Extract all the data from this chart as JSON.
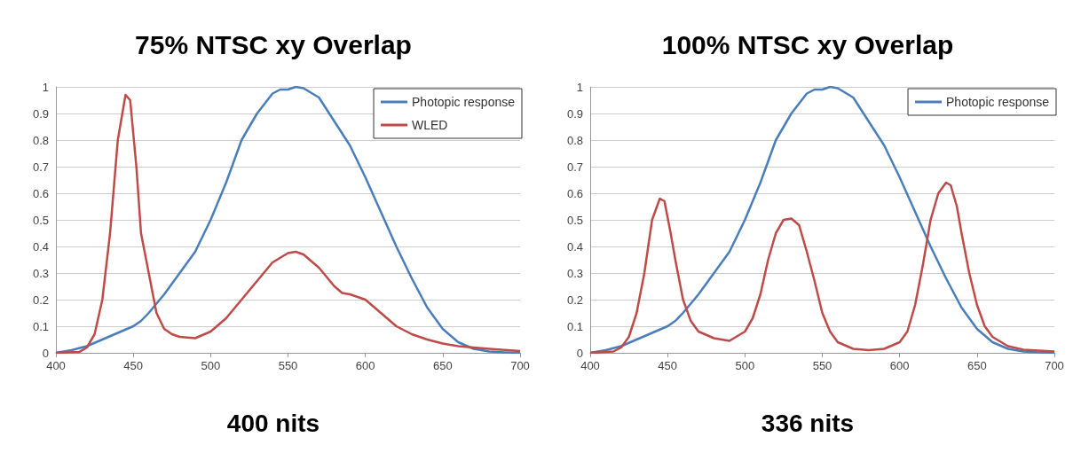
{
  "chart_data": [
    {
      "type": "line",
      "title": "75% NTSC xy Overlap",
      "annotations": [
        "400 nits"
      ],
      "xlim": [
        400,
        700
      ],
      "xticks": [
        400,
        450,
        500,
        550,
        600,
        650,
        700
      ],
      "ylim": [
        0,
        1
      ],
      "yticks": [
        0,
        0.1,
        0.2,
        0.3,
        0.4,
        0.5,
        0.6,
        0.7,
        0.8,
        0.9,
        1
      ],
      "grid": "y",
      "legend": "top right",
      "marker": "none",
      "line_style": "solid",
      "series": [
        {
          "name": "Photopic response",
          "color": "#4a7ebb",
          "x": [
            400,
            410,
            420,
            430,
            440,
            450,
            455,
            460,
            470,
            480,
            490,
            500,
            510,
            520,
            530,
            540,
            545,
            550,
            555,
            560,
            570,
            580,
            590,
            600,
            610,
            620,
            630,
            640,
            650,
            660,
            670,
            680,
            690,
            700
          ],
          "values": [
            0,
            0.01,
            0.025,
            0.05,
            0.075,
            0.1,
            0.12,
            0.15,
            0.22,
            0.3,
            0.38,
            0.5,
            0.64,
            0.8,
            0.9,
            0.975,
            0.99,
            0.99,
            1,
            0.995,
            0.96,
            0.87,
            0.78,
            0.66,
            0.53,
            0.4,
            0.28,
            0.17,
            0.09,
            0.04,
            0.015,
            0.005,
            0.002,
            0
          ]
        },
        {
          "name": "WLED",
          "color": "#be4b48",
          "x": [
            400,
            415,
            420,
            425,
            430,
            435,
            440,
            445,
            448,
            452,
            455,
            460,
            465,
            470,
            475,
            480,
            490,
            500,
            510,
            520,
            530,
            540,
            550,
            555,
            560,
            570,
            580,
            585,
            590,
            600,
            610,
            620,
            630,
            640,
            650,
            660,
            680,
            700
          ],
          "values": [
            0,
            0.003,
            0.02,
            0.07,
            0.2,
            0.45,
            0.8,
            0.97,
            0.95,
            0.7,
            0.45,
            0.3,
            0.15,
            0.09,
            0.07,
            0.06,
            0.055,
            0.08,
            0.13,
            0.2,
            0.27,
            0.34,
            0.375,
            0.38,
            0.37,
            0.32,
            0.25,
            0.225,
            0.22,
            0.2,
            0.15,
            0.1,
            0.07,
            0.05,
            0.035,
            0.025,
            0.015,
            0.007
          ]
        }
      ]
    },
    {
      "type": "line",
      "title": "100% NTSC xy Overlap",
      "annotations": [
        "336 nits"
      ],
      "xlim": [
        400,
        700
      ],
      "xticks": [
        400,
        450,
        500,
        550,
        600,
        650,
        700
      ],
      "ylim": [
        0,
        1
      ],
      "yticks": [
        0,
        0.1,
        0.2,
        0.3,
        0.4,
        0.5,
        0.6,
        0.7,
        0.8,
        0.9,
        1
      ],
      "grid": "y",
      "legend": "top right",
      "marker": "none",
      "line_style": "solid",
      "series": [
        {
          "name": "Photopic response",
          "color": "#4a7ebb",
          "x": [
            400,
            410,
            420,
            430,
            440,
            450,
            455,
            460,
            470,
            480,
            490,
            500,
            510,
            520,
            530,
            540,
            545,
            550,
            555,
            560,
            570,
            580,
            590,
            600,
            610,
            620,
            630,
            640,
            650,
            660,
            670,
            680,
            690,
            700
          ],
          "values": [
            0,
            0.01,
            0.025,
            0.05,
            0.075,
            0.1,
            0.12,
            0.15,
            0.22,
            0.3,
            0.38,
            0.5,
            0.64,
            0.8,
            0.9,
            0.975,
            0.99,
            0.99,
            1,
            0.995,
            0.96,
            0.87,
            0.78,
            0.66,
            0.53,
            0.4,
            0.28,
            0.17,
            0.09,
            0.04,
            0.015,
            0.005,
            0.002,
            0
          ]
        },
        {
          "color": "#be4b48",
          "x": [
            400,
            415,
            420,
            425,
            430,
            435,
            440,
            445,
            448,
            452,
            455,
            460,
            465,
            470,
            480,
            490,
            500,
            505,
            510,
            515,
            520,
            525,
            530,
            535,
            540,
            545,
            550,
            555,
            560,
            570,
            580,
            590,
            600,
            605,
            610,
            615,
            620,
            625,
            630,
            633,
            637,
            640,
            645,
            650,
            655,
            660,
            670,
            680,
            700
          ],
          "values": [
            0,
            0.005,
            0.02,
            0.06,
            0.15,
            0.3,
            0.5,
            0.58,
            0.57,
            0.45,
            0.35,
            0.2,
            0.12,
            0.08,
            0.055,
            0.045,
            0.08,
            0.13,
            0.22,
            0.35,
            0.45,
            0.5,
            0.505,
            0.48,
            0.38,
            0.27,
            0.15,
            0.08,
            0.04,
            0.015,
            0.01,
            0.015,
            0.04,
            0.08,
            0.18,
            0.33,
            0.5,
            0.6,
            0.64,
            0.63,
            0.55,
            0.45,
            0.3,
            0.18,
            0.1,
            0.06,
            0.025,
            0.012,
            0.005
          ]
        }
      ]
    }
  ]
}
